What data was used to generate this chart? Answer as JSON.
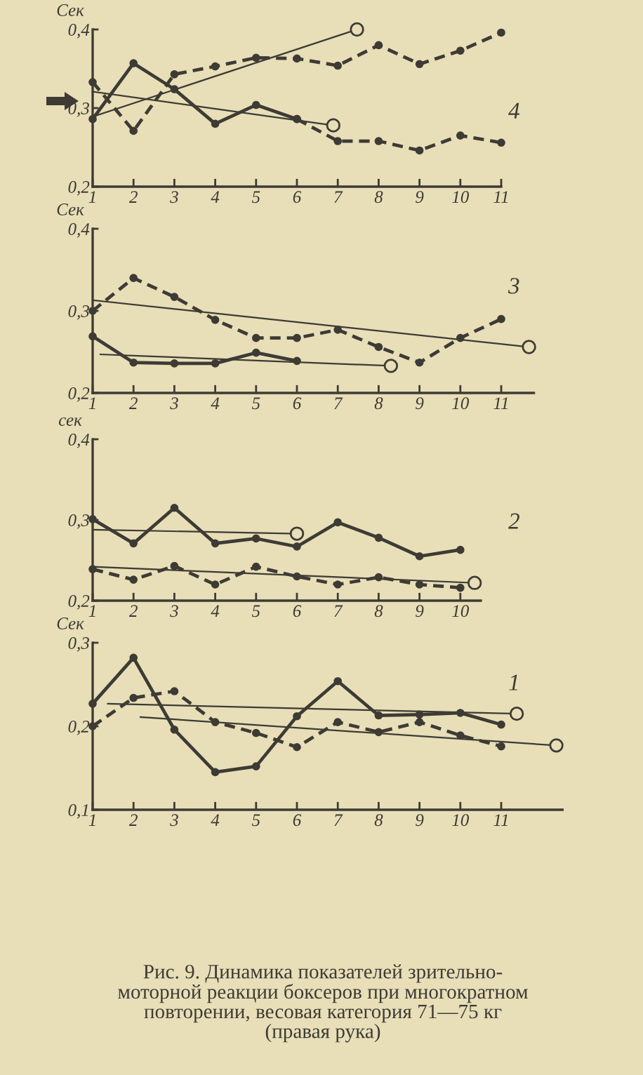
{
  "chart_data": [
    {
      "type": "line",
      "ylabel": "Сек",
      "xlim": [
        1,
        11
      ],
      "ylim": [
        0.2,
        0.4
      ],
      "xticks": [
        1,
        2,
        3,
        4,
        5,
        6,
        7,
        8,
        9,
        10,
        11
      ],
      "yticks": [
        {
          "value": 0.2,
          "label": "0,2"
        },
        {
          "value": 0.3,
          "label": "0,3"
        },
        {
          "value": 0.4,
          "label": "0,4"
        }
      ],
      "annotations": [
        "4"
      ],
      "series": [
        {
          "color": "#3d3b34",
          "line_style": "solid",
          "marker": "circle",
          "x": [
            1,
            2,
            3,
            4,
            5,
            6
          ],
          "values": [
            0.286,
            0.357,
            0.324,
            0.28,
            0.304,
            0.286
          ]
        },
        {
          "color": "#3d3b34",
          "line_style": "dashed",
          "marker": "circle",
          "x": [
            6,
            7,
            8,
            9,
            10,
            11
          ],
          "values": [
            0.286,
            0.258,
            0.258,
            0.246,
            0.265,
            0.256
          ]
        },
        {
          "color": "#3d3b34",
          "line_style": "dashed",
          "marker": "circle",
          "x": [
            1,
            2,
            3,
            4,
            5,
            6,
            7,
            8,
            9,
            10,
            11
          ],
          "values": [
            0.333,
            0.271,
            0.343,
            0.353,
            0.364,
            0.363,
            0.354,
            0.38,
            0.356,
            0.373,
            0.396
          ]
        },
        {
          "color": "#3d3b34",
          "x": [
            1,
            7.47
          ],
          "values": [
            0.289,
            0.4
          ]
        },
        {
          "type": "scatter",
          "color": "#3d3b34",
          "marker": "circle",
          "x": [
            7.47
          ],
          "values": [
            0.4
          ]
        },
        {
          "color": "#3d3b34",
          "x": [
            1,
            6.89
          ],
          "values": [
            0.321,
            0.278
          ]
        },
        {
          "type": "scatter",
          "color": "#3d3b34",
          "marker": "circle",
          "x": [
            6.89
          ],
          "values": [
            0.278
          ]
        }
      ]
    },
    {
      "type": "line",
      "ylabel": "Сек",
      "xlim": [
        1,
        11.8
      ],
      "ylim": [
        0.2,
        0.4
      ],
      "xticks": [
        1,
        2,
        3,
        4,
        5,
        6,
        7,
        8,
        9,
        10,
        11
      ],
      "yticks": [
        {
          "value": 0.2,
          "label": "0,2"
        },
        {
          "value": 0.3,
          "label": "0,3"
        },
        {
          "value": 0.4,
          "label": "0,4"
        }
      ],
      "annotations": [
        "3"
      ],
      "series": [
        {
          "color": "#3d3b34",
          "line_style": "dashed",
          "marker": "circle",
          "x": [
            1,
            2,
            3,
            4,
            5,
            6,
            7,
            8,
            9,
            10,
            11
          ],
          "values": [
            0.3,
            0.34,
            0.317,
            0.289,
            0.267,
            0.267,
            0.277,
            0.256,
            0.237,
            0.267,
            0.29
          ]
        },
        {
          "color": "#3d3b34",
          "line_style": "solid",
          "marker": "circle",
          "x": [
            1,
            2,
            3,
            4,
            5,
            6
          ],
          "values": [
            0.269,
            0.237,
            0.236,
            0.236,
            0.249,
            0.239
          ]
        },
        {
          "color": "#3d3b34",
          "x": [
            1,
            11.68
          ],
          "values": [
            0.313,
            0.256
          ]
        },
        {
          "type": "scatter",
          "color": "#3d3b34",
          "marker": "circle",
          "x": [
            11.68
          ],
          "values": [
            0.256
          ]
        },
        {
          "color": "#3d3b34",
          "x": [
            1.19,
            8.3
          ],
          "values": [
            0.247,
            0.233
          ]
        },
        {
          "type": "scatter",
          "color": "#3d3b34",
          "marker": "circle",
          "x": [
            8.3
          ],
          "values": [
            0.233
          ]
        }
      ]
    },
    {
      "type": "line",
      "ylabel": "сек",
      "xlim": [
        1,
        10.5
      ],
      "ylim": [
        0.2,
        0.4
      ],
      "xticks": [
        1,
        2,
        3,
        4,
        5,
        6,
        7,
        8,
        9,
        10
      ],
      "yticks": [
        {
          "value": 0.2,
          "label": "0,2"
        },
        {
          "value": 0.3,
          "label": "0,3"
        },
        {
          "value": 0.4,
          "label": "0,4"
        }
      ],
      "annotations": [
        "2"
      ],
      "series": [
        {
          "color": "#3d3b34",
          "line_style": "solid",
          "marker": "circle",
          "x": [
            1,
            2,
            3,
            4,
            5,
            6,
            7,
            8,
            9,
            10
          ],
          "values": [
            0.301,
            0.271,
            0.315,
            0.271,
            0.277,
            0.267,
            0.297,
            0.278,
            0.255,
            0.263
          ]
        },
        {
          "color": "#3d3b34",
          "line_style": "dashed",
          "marker": "circle",
          "x": [
            1,
            2,
            3,
            4,
            5,
            6,
            7,
            8,
            9,
            10
          ],
          "values": [
            0.239,
            0.226,
            0.243,
            0.22,
            0.242,
            0.23,
            0.22,
            0.229,
            0.22,
            0.216
          ]
        },
        {
          "color": "#3d3b34",
          "x": [
            1,
            6
          ],
          "values": [
            0.288,
            0.283
          ]
        },
        {
          "type": "scatter",
          "color": "#3d3b34",
          "marker": "circle",
          "x": [
            6
          ],
          "values": [
            0.283
          ]
        },
        {
          "color": "#3d3b34",
          "x": [
            1,
            10.35
          ],
          "values": [
            0.242,
            0.222
          ]
        },
        {
          "type": "scatter",
          "color": "#3d3b34",
          "marker": "circle",
          "x": [
            10.35
          ],
          "values": [
            0.222
          ]
        }
      ]
    },
    {
      "type": "line",
      "ylabel": "Сек",
      "xlim": [
        1,
        12.5
      ],
      "ylim": [
        0.1,
        0.3
      ],
      "xticks": [
        1,
        2,
        3,
        4,
        5,
        6,
        7,
        8,
        9,
        10,
        11
      ],
      "yticks": [
        {
          "value": 0.1,
          "label": "0,1"
        },
        {
          "value": 0.2,
          "label": "0,2"
        },
        {
          "value": 0.3,
          "label": "0,3"
        }
      ],
      "annotations": [
        "1"
      ],
      "series": [
        {
          "color": "#3d3b34",
          "line_style": "solid",
          "marker": "circle",
          "x": [
            1,
            2,
            3,
            4,
            5,
            6,
            7,
            8,
            9,
            10,
            11
          ],
          "values": [
            0.227,
            0.282,
            0.196,
            0.145,
            0.152,
            0.212,
            0.254,
            0.213,
            0.214,
            0.216,
            0.202
          ]
        },
        {
          "color": "#3d3b34",
          "line_style": "dashed",
          "marker": "circle",
          "x": [
            1,
            2,
            3,
            4,
            5,
            6,
            7,
            8,
            9,
            10,
            11
          ],
          "values": [
            0.2,
            0.234,
            0.242,
            0.205,
            0.192,
            0.175,
            0.205,
            0.193,
            0.205,
            0.189,
            0.176
          ]
        },
        {
          "color": "#3d3b34",
          "x": [
            1.37,
            11.38
          ],
          "values": [
            0.227,
            0.215
          ]
        },
        {
          "type": "scatter",
          "color": "#3d3b34",
          "marker": "circle",
          "x": [
            11.38
          ],
          "values": [
            0.215
          ]
        },
        {
          "color": "#3d3b34",
          "x": [
            2.17,
            12.35
          ],
          "values": [
            0.211,
            0.177
          ]
        },
        {
          "type": "scatter",
          "color": "#3d3b34",
          "marker": "circle",
          "x": [
            12.35
          ],
          "values": [
            0.177
          ]
        }
      ]
    },
    {
      "type": "other",
      "annotations": [
        "Рис. 9. Динамика показателей зрительно-\nмоторной реакции боксеров при многократном\nповторении, весовая категория 71—75 кг\n(правая рука)"
      ]
    }
  ]
}
